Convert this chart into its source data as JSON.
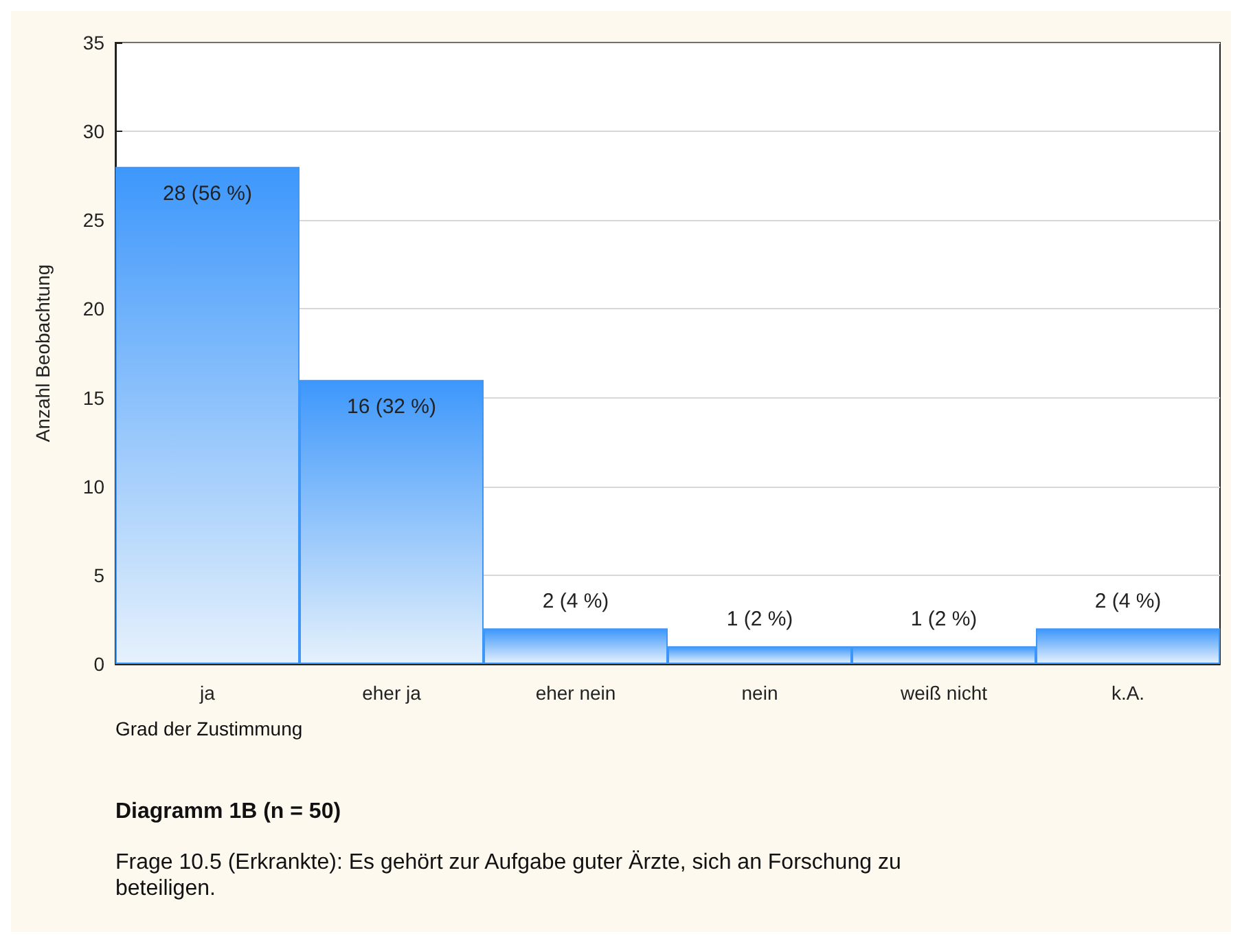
{
  "chart_data": {
    "type": "bar",
    "title": "Diagramm 1B (n = 50)",
    "xlabel": "Grad der Zustimmung",
    "ylabel": "Anzahl Beobachtung",
    "annotations": [
      "Frage 10.5 (Erkrankte): Es gehört zur Aufgabe guter Ärzte, sich an Forschung zu beteiligen."
    ],
    "categories": [
      "ja",
      "eher ja",
      "eher nein",
      "nein",
      "weiß nicht",
      "k.A."
    ],
    "values": [
      28,
      16,
      2,
      1,
      1,
      2
    ],
    "value_labels": [
      "28 (56 %)",
      "16 (32 %)",
      "2 (4 %)",
      "1 (2 %)",
      "1 (2 %)",
      "2 (4 %)"
    ],
    "color": "#3d97fb",
    "ylim": [
      0,
      35
    ],
    "yticks": [
      0,
      5,
      10,
      15,
      20,
      25,
      30,
      35
    ],
    "grid": "y"
  }
}
